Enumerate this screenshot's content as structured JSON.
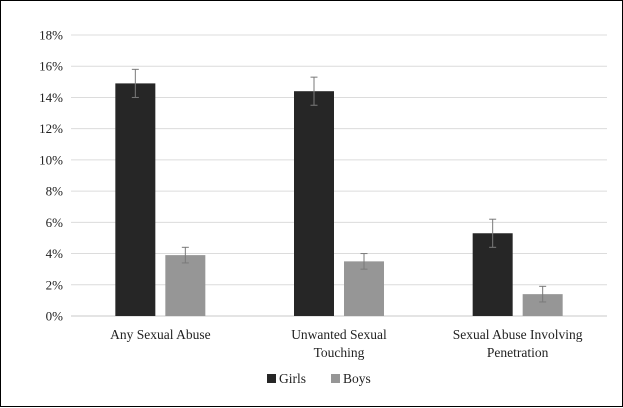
{
  "chart_data": {
    "type": "bar",
    "categories": [
      [
        "Any Sexual Abuse"
      ],
      [
        "Unwanted Sexual",
        "Touching"
      ],
      [
        "Sexual Abuse Involving",
        "Penetration"
      ]
    ],
    "series": [
      {
        "name": "Girls",
        "color": "#262626",
        "values": [
          14.9,
          14.4,
          5.3
        ],
        "error": [
          0.9,
          0.9,
          0.9
        ]
      },
      {
        "name": "Boys",
        "color": "#969696",
        "values": [
          3.9,
          3.5,
          1.4
        ],
        "error": [
          0.5,
          0.5,
          0.5
        ]
      }
    ],
    "ylim": [
      0,
      18
    ],
    "yticks": [
      0,
      2,
      4,
      6,
      8,
      10,
      12,
      14,
      16,
      18
    ],
    "ytick_labels": [
      "0%",
      "2%",
      "4%",
      "6%",
      "8%",
      "10%",
      "12%",
      "14%",
      "16%",
      "18%"
    ],
    "grid": true,
    "legend_position": "bottom"
  }
}
